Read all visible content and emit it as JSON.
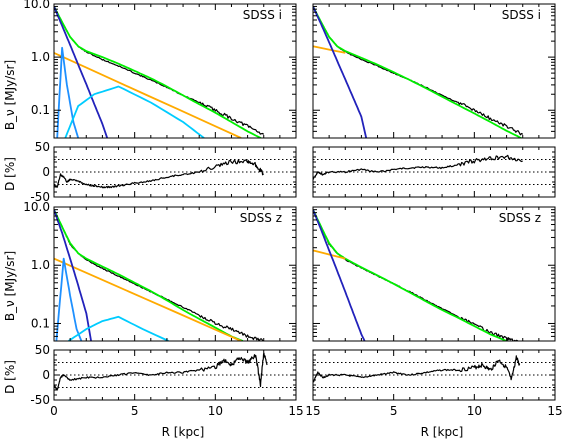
{
  "chart_data": [
    {
      "type": "line",
      "panel": "top-left",
      "title": "SDSS i",
      "yscale": "log",
      "ylabel": "B_ν [MJy/sr]",
      "ylim": [
        0.03,
        10.0
      ],
      "yticks": [
        "10.0",
        "1.0",
        "0.1"
      ],
      "xlim": [
        0,
        15
      ],
      "series": [
        {
          "color": "#000000",
          "x": [
            0,
            0.3,
            0.6,
            1,
            1.5,
            2,
            3,
            4,
            5,
            6,
            7,
            8,
            9,
            10,
            11,
            12,
            13
          ],
          "y": [
            9.0,
            6.0,
            4.0,
            2.4,
            1.6,
            1.25,
            0.9,
            0.68,
            0.5,
            0.37,
            0.27,
            0.19,
            0.14,
            0.1,
            0.07,
            0.05,
            0.035
          ]
        },
        {
          "color": "#00ee00",
          "x": [
            0,
            0.3,
            0.6,
            1,
            1.5,
            2,
            3,
            4,
            5,
            6,
            7,
            8,
            9,
            10,
            11,
            12,
            13
          ],
          "y": [
            9.0,
            6.0,
            4.0,
            2.4,
            1.6,
            1.3,
            1.0,
            0.75,
            0.55,
            0.4,
            0.28,
            0.19,
            0.13,
            0.09,
            0.06,
            0.04,
            0.028
          ]
        },
        {
          "color": "#ffaa00",
          "x": [
            0,
            11.6
          ],
          "y": [
            1.2,
            0.03
          ]
        },
        {
          "color": "#2222bb",
          "x": [
            0,
            0.5,
            1,
            1.5,
            2,
            2.5,
            3,
            3.3
          ],
          "y": [
            9.0,
            3.9,
            1.7,
            0.72,
            0.31,
            0.13,
            0.055,
            0.03
          ]
        },
        {
          "color": "#1e90ff",
          "x": [
            0.2,
            0.5,
            0.8,
            1.2,
            1.5
          ],
          "y": [
            0.03,
            1.5,
            0.3,
            0.06,
            0.03
          ]
        },
        {
          "color": "#00ccff",
          "x": [
            0.7,
            1.5,
            2.5,
            4,
            6,
            8,
            9.3
          ],
          "y": [
            0.03,
            0.12,
            0.2,
            0.28,
            0.14,
            0.06,
            0.03
          ]
        }
      ]
    },
    {
      "type": "line",
      "panel": "top-right",
      "title": "SDSS i",
      "yscale": "log",
      "ylim": [
        0.03,
        10.0
      ],
      "xlim": [
        0,
        15
      ],
      "series": [
        {
          "color": "#000000",
          "x": [
            0,
            0.3,
            0.6,
            1,
            1.5,
            2,
            3,
            4,
            5,
            6,
            7,
            8,
            9,
            10,
            11,
            12,
            13
          ],
          "y": [
            9.0,
            6.0,
            4.0,
            2.4,
            1.6,
            1.25,
            0.9,
            0.68,
            0.5,
            0.37,
            0.27,
            0.19,
            0.14,
            0.1,
            0.07,
            0.05,
            0.035
          ]
        },
        {
          "color": "#00ee00",
          "x": [
            0,
            0.3,
            0.6,
            1,
            1.5,
            2,
            3,
            4,
            5,
            6,
            7,
            8,
            9,
            10,
            11,
            12,
            13
          ],
          "y": [
            9.0,
            6.0,
            4.0,
            2.4,
            1.6,
            1.3,
            0.97,
            0.72,
            0.52,
            0.37,
            0.26,
            0.18,
            0.125,
            0.087,
            0.06,
            0.041,
            0.029
          ]
        },
        {
          "color": "#ffaa00",
          "x": [
            0,
            2
          ],
          "y": [
            1.6,
            1.2
          ]
        },
        {
          "color": "#2222bb",
          "x": [
            0,
            0.5,
            1,
            1.5,
            2,
            2.5,
            3,
            3.3
          ],
          "y": [
            9.0,
            4.2,
            1.9,
            0.85,
            0.38,
            0.17,
            0.075,
            0.03
          ]
        }
      ]
    },
    {
      "type": "line",
      "panel": "top-left-residual",
      "ylabel": "D [%]",
      "ylim": [
        -50,
        50
      ],
      "yticks": [
        "50",
        "0",
        "-50"
      ],
      "reference_lines": [
        25,
        0,
        -25
      ],
      "xlim": [
        0,
        15
      ],
      "series": [
        {
          "color": "#000000",
          "x": [
            0,
            0.2,
            0.4,
            0.6,
            0.8,
            1,
            1.5,
            2,
            2.5,
            3,
            3.5,
            4,
            5,
            6,
            7,
            8,
            9,
            10,
            11,
            12,
            12.5,
            13
          ],
          "y": [
            -25,
            -30,
            -5,
            -10,
            -20,
            -15,
            -18,
            -25,
            -28,
            -30,
            -30,
            -28,
            -22,
            -18,
            -10,
            -5,
            0,
            10,
            20,
            22,
            15,
            -5
          ]
        }
      ]
    },
    {
      "type": "line",
      "panel": "top-right-residual",
      "ylim": [
        -50,
        50
      ],
      "reference_lines": [
        25,
        0,
        -25
      ],
      "xlim": [
        0,
        15
      ],
      "series": [
        {
          "color": "#000000",
          "x": [
            0,
            0.3,
            0.6,
            1,
            2,
            3,
            4,
            5,
            6,
            7,
            8,
            9,
            10,
            11,
            12,
            13
          ],
          "y": [
            -15,
            0,
            -5,
            0,
            0,
            5,
            0,
            5,
            8,
            10,
            8,
            15,
            22,
            28,
            30,
            22
          ]
        }
      ]
    },
    {
      "type": "line",
      "panel": "bottom-left",
      "title": "SDSS z",
      "yscale": "log",
      "ylabel": "B_ν [MJy/sr]",
      "ylim": [
        0.05,
        10.0
      ],
      "yticks": [
        "10.0",
        "1.0",
        "0.1"
      ],
      "xlim": [
        0,
        15
      ],
      "series": [
        {
          "color": "#000000",
          "x": [
            0,
            0.3,
            0.6,
            1,
            1.5,
            2,
            3,
            4,
            5,
            6,
            7,
            8,
            9,
            10,
            11,
            12,
            13
          ],
          "y": [
            9.0,
            6.0,
            4.0,
            2.3,
            1.6,
            1.25,
            0.88,
            0.65,
            0.48,
            0.35,
            0.26,
            0.19,
            0.14,
            0.1,
            0.08,
            0.06,
            0.05
          ]
        },
        {
          "color": "#00ee00",
          "x": [
            0,
            0.3,
            0.6,
            1,
            1.5,
            2,
            3,
            4,
            5,
            6,
            7,
            8,
            9,
            10,
            11,
            11.7
          ],
          "y": [
            9.0,
            6.0,
            4.0,
            2.4,
            1.6,
            1.3,
            0.95,
            0.7,
            0.5,
            0.36,
            0.25,
            0.17,
            0.12,
            0.085,
            0.06,
            0.05
          ]
        },
        {
          "color": "#ffaa00",
          "x": [
            0,
            11.6
          ],
          "y": [
            1.3,
            0.05
          ]
        },
        {
          "color": "#2222bb",
          "x": [
            0,
            0.5,
            1,
            1.5,
            2,
            2.3
          ],
          "y": [
            9.0,
            3.6,
            1.3,
            0.45,
            0.15,
            0.05
          ]
        },
        {
          "color": "#1e90ff",
          "x": [
            0.15,
            0.6,
            1.0,
            1.4,
            1.7
          ],
          "y": [
            0.05,
            1.3,
            0.3,
            0.08,
            0.05
          ]
        },
        {
          "color": "#00ccff",
          "x": [
            0.9,
            2,
            3,
            4,
            5.5,
            7.1
          ],
          "y": [
            0.05,
            0.08,
            0.11,
            0.13,
            0.08,
            0.05
          ]
        }
      ]
    },
    {
      "type": "line",
      "panel": "bottom-right",
      "title": "SDSS z",
      "yscale": "log",
      "ylim": [
        0.05,
        10.0
      ],
      "xlim": [
        0,
        15
      ],
      "series": [
        {
          "color": "#000000",
          "x": [
            0,
            0.3,
            0.6,
            1,
            1.5,
            2,
            3,
            4,
            5,
            6,
            7,
            8,
            9,
            10,
            11,
            12,
            12.7
          ],
          "y": [
            9.0,
            6.0,
            4.0,
            2.3,
            1.6,
            1.25,
            0.9,
            0.66,
            0.48,
            0.35,
            0.25,
            0.18,
            0.13,
            0.095,
            0.07,
            0.055,
            0.05
          ]
        },
        {
          "color": "#00ee00",
          "x": [
            0,
            0.3,
            0.6,
            1,
            1.5,
            2,
            3,
            4,
            5,
            6,
            7,
            8,
            9,
            10,
            11,
            12,
            12.6
          ],
          "y": [
            9.0,
            6.0,
            4.0,
            2.4,
            1.6,
            1.3,
            0.92,
            0.67,
            0.48,
            0.34,
            0.24,
            0.17,
            0.125,
            0.09,
            0.065,
            0.05,
            0.045
          ]
        },
        {
          "color": "#ffaa00",
          "x": [
            0,
            2
          ],
          "y": [
            1.8,
            1.3
          ]
        },
        {
          "color": "#2222bb",
          "x": [
            0,
            0.5,
            1,
            1.5,
            2,
            2.5,
            3,
            3.2
          ],
          "y": [
            9.0,
            4.1,
            1.8,
            0.8,
            0.35,
            0.15,
            0.065,
            0.05
          ]
        }
      ]
    },
    {
      "type": "line",
      "panel": "bottom-left-residual",
      "ylabel": "D [%]",
      "ylim": [
        -50,
        50
      ],
      "yticks": [
        "50",
        "0",
        "-50"
      ],
      "reference_lines": [
        25,
        0,
        -25
      ],
      "xlim": [
        0,
        15
      ],
      "xlabel": "R [kpc]",
      "xticks": [
        "0",
        "5",
        "10"
      ],
      "series": [
        {
          "color": "#000000",
          "x": [
            0,
            0.2,
            0.4,
            0.6,
            1,
            2,
            3,
            4,
            5,
            6,
            7,
            8,
            9,
            10,
            10.5,
            11,
            11.5,
            12,
            12.5,
            12.8,
            13,
            13.2
          ],
          "y": [
            -20,
            -30,
            -5,
            0,
            -10,
            -5,
            -5,
            0,
            5,
            0,
            5,
            5,
            10,
            15,
            30,
            20,
            35,
            25,
            40,
            -20,
            45,
            20
          ]
        }
      ]
    },
    {
      "type": "line",
      "panel": "bottom-right-residual",
      "ylim": [
        -50,
        50
      ],
      "reference_lines": [
        25,
        0,
        -25
      ],
      "xlim": [
        0,
        15
      ],
      "xlabel": "R [kpc]",
      "xticks": [
        "15",
        "5",
        "10",
        "15"
      ],
      "series": [
        {
          "color": "#000000",
          "x": [
            0,
            0.3,
            0.6,
            1,
            2,
            3,
            4,
            5,
            6,
            7,
            8,
            9,
            10,
            10.5,
            11,
            11.5,
            12,
            12.3,
            12.6,
            12.8
          ],
          "y": [
            -15,
            5,
            -5,
            0,
            0,
            -5,
            0,
            5,
            0,
            5,
            10,
            10,
            15,
            20,
            10,
            30,
            15,
            -10,
            35,
            20
          ]
        }
      ]
    }
  ]
}
